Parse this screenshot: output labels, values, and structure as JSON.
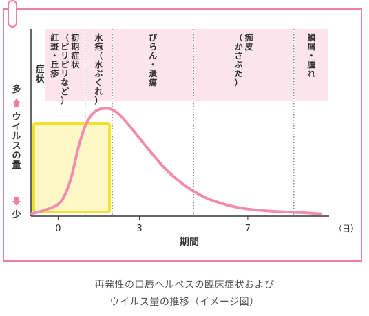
{
  "chart_data": {
    "type": "line",
    "title": "再発性の口唇ヘルペスの臨床症状および",
    "subtitle": "ウイルス量の推移（イメージ図）",
    "xlabel": "期間",
    "x_unit": "（日）",
    "ylabel": "ウイルスの量",
    "y_high_label": "多",
    "y_low_label": "少",
    "symptom_axis_label": "症状",
    "x_ticks": [
      0,
      3,
      7
    ],
    "xlim": [
      -1,
      10
    ],
    "ylim": [
      0,
      100
    ],
    "grid": false,
    "phases": [
      {
        "start": -0.5,
        "end": 1,
        "lines": [
          "初期症状",
          "（ピリピリなど）",
          "紅斑・丘疹"
        ]
      },
      {
        "start": 1,
        "end": 2,
        "lines": [
          "水疱（水ぶくれ）"
        ]
      },
      {
        "start": 2,
        "end": 5,
        "lines": [
          "びらん・潰瘍"
        ]
      },
      {
        "start": 5,
        "end": 8.7,
        "lines": [
          "痂皮",
          "（かさぶた）"
        ]
      },
      {
        "start": 8.7,
        "end": 10,
        "lines": [
          "鱗屑・腫れ"
        ]
      }
    ],
    "highlight": {
      "x_range": [
        -0.9,
        1.9
      ],
      "label": ""
    },
    "series": [
      {
        "x": [
          -1,
          -0.5,
          0,
          0.25,
          0.5,
          0.75,
          1,
          1.25,
          1.5,
          1.75,
          2,
          2.25,
          2.5,
          3,
          3.5,
          4,
          4.5,
          5,
          5.5,
          6,
          6.5,
          7,
          8,
          9,
          9.7
        ],
        "values": [
          2,
          5,
          10,
          18,
          34,
          58,
          76,
          86,
          90,
          91,
          90,
          86,
          80,
          66,
          52,
          39,
          29,
          21,
          15,
          11,
          8,
          6,
          4,
          3,
          2
        ]
      }
    ],
    "colors": {
      "line": "#f28bb1",
      "phase_bg": "#fbe4ec",
      "highlight_fill": "#fdf7c6",
      "highlight_stroke": "#f2e12a",
      "accent": "#f07da6"
    }
  }
}
